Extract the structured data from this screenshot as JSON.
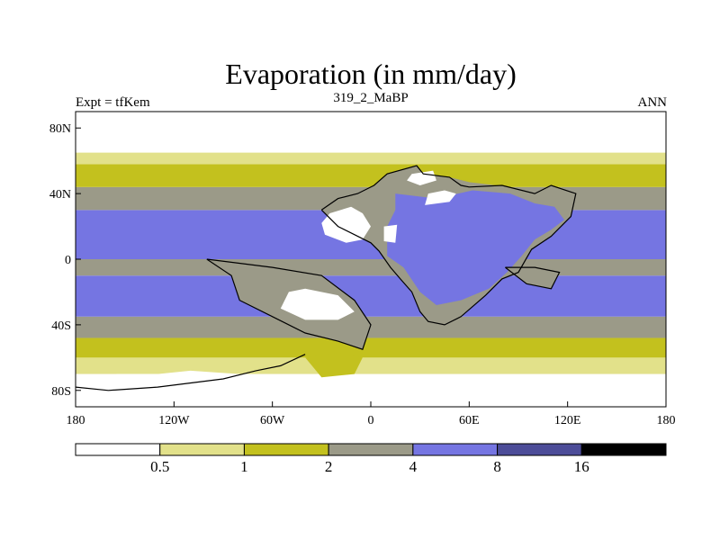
{
  "chart_data": {
    "type": "heatmap",
    "title": "Evaporation (in mm/day)",
    "left_string": "Expt = tfKem",
    "center_string": "319_2_MaBP",
    "right_string": "ANN",
    "xlim": [
      -180,
      180
    ],
    "ylim": [
      -90,
      90
    ],
    "x_ticks": [
      {
        "value": -180,
        "label": "180"
      },
      {
        "value": -120,
        "label": "120W"
      },
      {
        "value": -60,
        "label": "60W"
      },
      {
        "value": 0,
        "label": "0"
      },
      {
        "value": 60,
        "label": "60E"
      },
      {
        "value": 120,
        "label": "120E"
      },
      {
        "value": 180,
        "label": "180"
      }
    ],
    "y_ticks": [
      {
        "value": 80,
        "label": "80N"
      },
      {
        "value": 40,
        "label": "40N"
      },
      {
        "value": 0,
        "label": "0"
      },
      {
        "value": -40,
        "label": "40S"
      },
      {
        "value": -80,
        "label": "80S"
      }
    ],
    "contour_levels": [
      "0.5",
      "1",
      "2",
      "4",
      "8",
      "16"
    ],
    "level_values": [
      0.5,
      1,
      2,
      4,
      8,
      16
    ],
    "colors": [
      "#ffffff",
      "#e2e18a",
      "#c3c11e",
      "#9b9a88",
      "#7575e2",
      "#4c4c98",
      "#000000"
    ],
    "zonal_bands": [
      {
        "lat": [
          -90,
          -70
        ],
        "class": 0
      },
      {
        "lat": [
          -70,
          -60
        ],
        "class": 1
      },
      {
        "lat": [
          -60,
          -48
        ],
        "class": 2
      },
      {
        "lat": [
          -48,
          -35
        ],
        "class": 3
      },
      {
        "lat": [
          -35,
          -10
        ],
        "class": 4
      },
      {
        "lat": [
          -10,
          0
        ],
        "class": 3
      },
      {
        "lat": [
          0,
          30
        ],
        "class": 4
      },
      {
        "lat": [
          30,
          44
        ],
        "class": 3
      },
      {
        "lat": [
          44,
          58
        ],
        "class": 2
      },
      {
        "lat": [
          58,
          65
        ],
        "class": 1
      },
      {
        "lat": [
          65,
          90
        ],
        "class": 0
      }
    ],
    "features": [
      {
        "class": 3,
        "pts": [
          [
            -30,
            30
          ],
          [
            -20,
            37
          ],
          [
            -8,
            40
          ],
          [
            2,
            45
          ],
          [
            10,
            52
          ],
          [
            28,
            57
          ],
          [
            32,
            52
          ],
          [
            48,
            50
          ],
          [
            60,
            47
          ],
          [
            85,
            44
          ],
          [
            100,
            40
          ],
          [
            110,
            45
          ],
          [
            125,
            40
          ],
          [
            122,
            26
          ],
          [
            110,
            14
          ],
          [
            98,
            6
          ],
          [
            90,
            -8
          ],
          [
            80,
            -12
          ],
          [
            70,
            -22
          ],
          [
            55,
            -35
          ],
          [
            45,
            -40
          ],
          [
            35,
            -38
          ],
          [
            30,
            -32
          ],
          [
            25,
            -20
          ],
          [
            18,
            -12
          ],
          [
            12,
            -5
          ],
          [
            5,
            5
          ],
          [
            0,
            10
          ],
          [
            -10,
            15
          ],
          [
            -20,
            20
          ]
        ]
      },
      {
        "class": 4,
        "pts": [
          [
            15,
            40
          ],
          [
            40,
            37
          ],
          [
            62,
            42
          ],
          [
            85,
            40
          ],
          [
            100,
            34
          ],
          [
            112,
            32
          ],
          [
            118,
            24
          ],
          [
            110,
            18
          ],
          [
            100,
            12
          ],
          [
            92,
            2
          ],
          [
            83,
            -8
          ],
          [
            72,
            -18
          ],
          [
            55,
            -25
          ],
          [
            40,
            -28
          ],
          [
            30,
            -20
          ],
          [
            20,
            -5
          ],
          [
            10,
            2
          ],
          [
            10,
            20
          ],
          [
            15,
            30
          ]
        ]
      },
      {
        "class": 3,
        "pts": [
          [
            82,
            -5
          ],
          [
            100,
            -5
          ],
          [
            115,
            -8
          ],
          [
            110,
            -18
          ],
          [
            95,
            -15
          ]
        ]
      },
      {
        "class": 3,
        "pts": [
          [
            -100,
            0
          ],
          [
            -85,
            -10
          ],
          [
            -80,
            -25
          ],
          [
            -60,
            -35
          ],
          [
            -40,
            -45
          ],
          [
            -20,
            -50
          ],
          [
            -5,
            -55
          ],
          [
            0,
            -40
          ],
          [
            -10,
            -25
          ],
          [
            -30,
            -10
          ],
          [
            -60,
            -5
          ]
        ]
      },
      {
        "class": 0,
        "pts": [
          [
            -25,
            28
          ],
          [
            -12,
            32
          ],
          [
            -5,
            28
          ],
          [
            0,
            20
          ],
          [
            -5,
            12
          ],
          [
            -15,
            10
          ],
          [
            -28,
            15
          ],
          [
            -30,
            22
          ]
        ]
      },
      {
        "class": 0,
        "pts": [
          [
            -50,
            -20
          ],
          [
            -40,
            -18
          ],
          [
            -20,
            -22
          ],
          [
            -10,
            -32
          ],
          [
            -20,
            -37
          ],
          [
            -40,
            -37
          ],
          [
            -55,
            -30
          ]
        ]
      },
      {
        "class": 0,
        "pts": [
          [
            -155,
            -70
          ],
          [
            -130,
            -70
          ],
          [
            -110,
            -68
          ],
          [
            -80,
            -70
          ],
          [
            -70,
            -78
          ],
          [
            -90,
            -85
          ],
          [
            -130,
            -85
          ],
          [
            -160,
            -82
          ]
        ]
      },
      {
        "class": 2,
        "pts": [
          [
            -40,
            -60
          ],
          [
            -20,
            -57
          ],
          [
            -5,
            -60
          ],
          [
            -10,
            -70
          ],
          [
            -30,
            -72
          ]
        ]
      },
      {
        "class": 0,
        "pts": [
          [
            25,
            52
          ],
          [
            38,
            54
          ],
          [
            40,
            48
          ],
          [
            30,
            45
          ],
          [
            22,
            48
          ]
        ]
      },
      {
        "class": 0,
        "pts": [
          [
            33,
            33
          ],
          [
            48,
            35
          ],
          [
            52,
            40
          ],
          [
            45,
            42
          ],
          [
            35,
            40
          ]
        ]
      },
      {
        "class": 0,
        "pts": [
          [
            8,
            20
          ],
          [
            16,
            21
          ],
          [
            15,
            10
          ],
          [
            8,
            11
          ]
        ]
      }
    ],
    "coastlines": [
      [
        [
          -30,
          30
        ],
        [
          -20,
          37
        ],
        [
          -8,
          40
        ],
        [
          2,
          45
        ],
        [
          10,
          52
        ],
        [
          28,
          57
        ],
        [
          32,
          52
        ],
        [
          48,
          50
        ],
        [
          55,
          45
        ],
        [
          60,
          44
        ],
        [
          80,
          45
        ],
        [
          100,
          40
        ],
        [
          110,
          45
        ],
        [
          125,
          40
        ],
        [
          122,
          26
        ],
        [
          110,
          14
        ],
        [
          98,
          6
        ],
        [
          90,
          -8
        ],
        [
          80,
          -12
        ],
        [
          70,
          -22
        ],
        [
          55,
          -35
        ],
        [
          45,
          -40
        ],
        [
          35,
          -38
        ],
        [
          30,
          -32
        ],
        [
          25,
          -20
        ],
        [
          18,
          -12
        ],
        [
          12,
          -5
        ],
        [
          5,
          5
        ],
        [
          0,
          10
        ],
        [
          -10,
          15
        ],
        [
          -20,
          20
        ],
        [
          -30,
          30
        ]
      ],
      [
        [
          82,
          -5
        ],
        [
          100,
          -5
        ],
        [
          115,
          -8
        ],
        [
          110,
          -18
        ],
        [
          95,
          -15
        ],
        [
          82,
          -5
        ]
      ],
      [
        [
          -100,
          0
        ],
        [
          -85,
          -10
        ],
        [
          -80,
          -25
        ],
        [
          -60,
          -35
        ],
        [
          -40,
          -45
        ],
        [
          -20,
          -50
        ],
        [
          -5,
          -55
        ],
        [
          0,
          -40
        ],
        [
          -10,
          -25
        ],
        [
          -30,
          -10
        ],
        [
          -60,
          -5
        ],
        [
          -100,
          0
        ]
      ],
      [
        [
          -180,
          -78
        ],
        [
          -160,
          -80
        ],
        [
          -130,
          -78
        ],
        [
          -90,
          -73
        ],
        [
          -70,
          -68
        ],
        [
          -55,
          -65
        ],
        [
          -40,
          -58
        ]
      ]
    ]
  }
}
